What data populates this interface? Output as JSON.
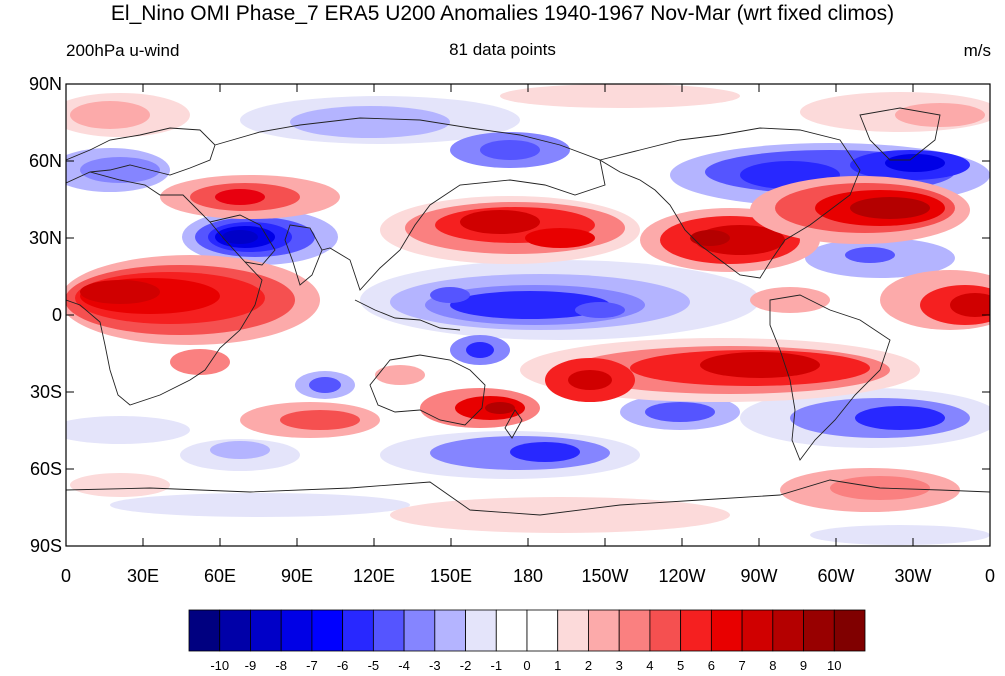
{
  "title": "El_Nino OMI Phase_7 ERA5 U200 Anomalies 1940-1967 Nov-Mar (wrt fixed climos)",
  "subtitle_left": "200hPa u-wind",
  "subtitle_center": "81 data points",
  "subtitle_right": "m/s",
  "map": {
    "projection": "cylindrical equidistant",
    "lon_range": [
      0,
      360
    ],
    "lat_range": [
      -90,
      90
    ],
    "x_tick_labels": [
      "0",
      "30E",
      "60E",
      "90E",
      "120E",
      "150E",
      "180",
      "150W",
      "120W",
      "90W",
      "60W",
      "30W",
      "0"
    ],
    "y_tick_labels": [
      "90N",
      "60N",
      "30N",
      "0",
      "30S",
      "60S",
      "90S"
    ]
  },
  "colorbar": {
    "labels": [
      "-10",
      "-9",
      "-8",
      "-7",
      "-6",
      "-5",
      "-4",
      "-3",
      "-2",
      "-1",
      "0",
      "1",
      "2",
      "3",
      "4",
      "5",
      "6",
      "7",
      "8",
      "9",
      "10"
    ],
    "colors": [
      "#000080",
      "#0000a8",
      "#0000c8",
      "#0000e6",
      "#0000ff",
      "#2828ff",
      "#5555ff",
      "#8585ff",
      "#b4b4ff",
      "#e4e4fa",
      "#ffffff",
      "#ffffff",
      "#fcdada",
      "#fcaaaa",
      "#fa8080",
      "#f55050",
      "#f52020",
      "#e80000",
      "#d00000",
      "#b40000",
      "#980000",
      "#800000"
    ]
  },
  "anomaly_features": [
    {
      "lon": 80,
      "lat": 30,
      "value": -10
    },
    {
      "lon": 195,
      "lat": 35,
      "value": 8
    },
    {
      "lon": 265,
      "lat": 30,
      "value": 8
    },
    {
      "lon": 320,
      "lat": 40,
      "value": 9
    },
    {
      "lon": 290,
      "lat": 57,
      "value": -8
    },
    {
      "lon": 325,
      "lat": 60,
      "value": -8
    },
    {
      "lon": 30,
      "lat": 7,
      "value": 9
    },
    {
      "lon": 208,
      "lat": 5,
      "value": -6
    },
    {
      "lon": 268,
      "lat": -20,
      "value": 8
    },
    {
      "lon": 330,
      "lat": -40,
      "value": -7
    },
    {
      "lon": 213,
      "lat": -53,
      "value": -6
    }
  ]
}
